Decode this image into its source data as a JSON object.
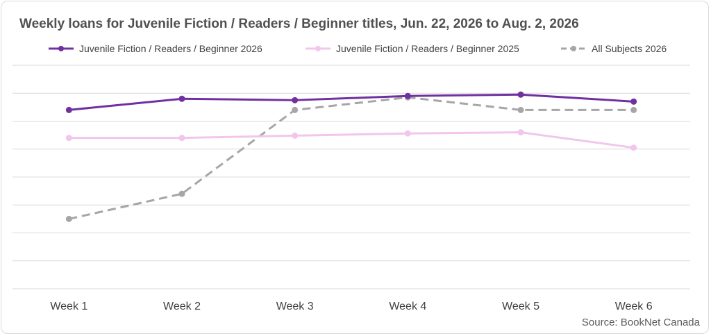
{
  "chart_data": {
    "type": "line",
    "title": "Weekly loans for Juvenile Fiction / Readers / Beginner titles,  Jun. 22, 2026 to Aug. 2, 2026",
    "categories": [
      "Week 1",
      "Week 2",
      "Week 3",
      "Week 4",
      "Week 5",
      "Week 6"
    ],
    "series": [
      {
        "name": "Juvenile Fiction / Readers / Beginner 2026",
        "color": "#7030a0",
        "dash": false,
        "values": [
          6.4,
          6.8,
          6.75,
          6.9,
          6.95,
          6.7
        ]
      },
      {
        "name": "Juvenile Fiction / Readers / Beginner 2025",
        "color": "#f2c6ec",
        "dash": false,
        "values": [
          5.4,
          5.4,
          5.48,
          5.56,
          5.6,
          5.05
        ]
      },
      {
        "name": "All Subjects 2026",
        "color": "#a6a6a6",
        "dash": true,
        "values": [
          2.5,
          3.4,
          6.4,
          6.85,
          6.4,
          6.4
        ]
      }
    ],
    "ylim": [
      0,
      8
    ],
    "grid": true,
    "legend_position": "top",
    "xlabel": "",
    "ylabel": ""
  },
  "source": "Source: BookNet Canada"
}
